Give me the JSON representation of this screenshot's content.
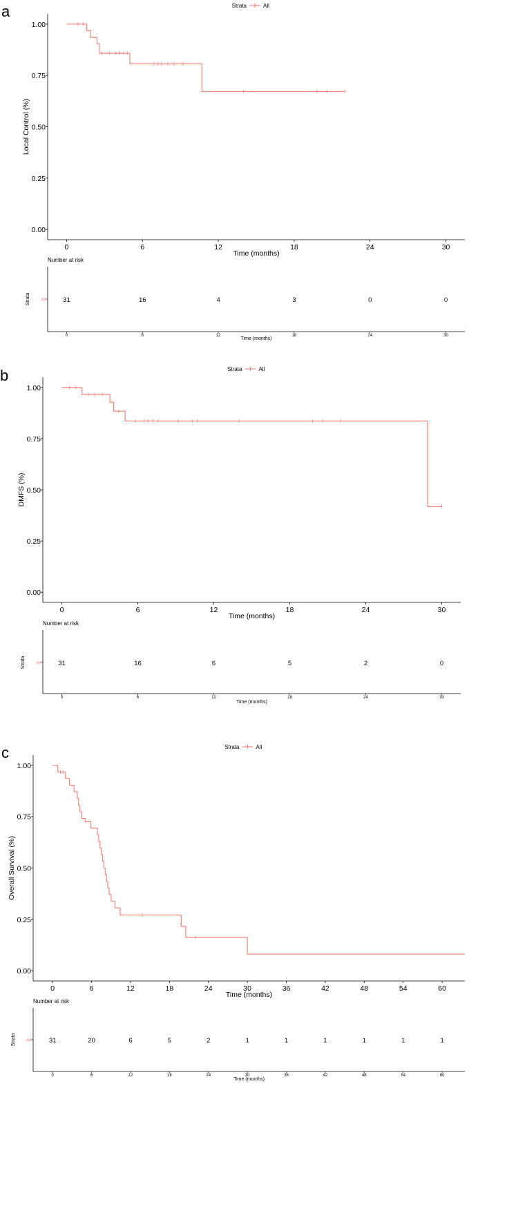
{
  "chart_data": [
    {
      "panel": "a",
      "type": "line",
      "subtype": "kaplan-meier",
      "legend": {
        "title": "Strata",
        "entries": [
          "All"
        ],
        "color": "#f8766d",
        "placement": "top-center"
      },
      "title": "",
      "xlabel": "Time (months)",
      "ylabel": "Local Control (%)",
      "xlim": [
        -1.5,
        31.5
      ],
      "ylim": [
        -0.05,
        1.05
      ],
      "xticks": [
        0,
        6,
        12,
        18,
        24,
        30
      ],
      "yticks": [
        0,
        0.25,
        0.5,
        0.75,
        1
      ],
      "ytick_labels": [
        "0.00",
        "0.25",
        "0.50",
        "0.75",
        "1.00"
      ],
      "grid": false,
      "series": [
        {
          "name": "All",
          "color": "#f8766d",
          "steps": [
            [
              0,
              1.0
            ],
            [
              1.6,
              0.968
            ],
            [
              1.9,
              0.935
            ],
            [
              2.4,
              0.903
            ],
            [
              2.6,
              0.858
            ],
            [
              5.0,
              0.806
            ],
            [
              10.7,
              0.672
            ]
          ],
          "end_x": 22.0,
          "censored": [
            0.9,
            1.3,
            2.8,
            3.4,
            3.9,
            4.2,
            4.5,
            4.8,
            6.9,
            7.2,
            7.5,
            8.0,
            8.5,
            9.2,
            14.0,
            19.8,
            20.6,
            22.0
          ]
        }
      ],
      "risk_table": {
        "title": "Number at risk",
        "strata_label": "Strata",
        "row_label": "All",
        "times": [
          0,
          6,
          12,
          18,
          24,
          30
        ],
        "values": [
          31,
          16,
          4,
          3,
          0,
          0
        ],
        "xlabel": "Time (months)"
      }
    },
    {
      "panel": "b",
      "type": "line",
      "subtype": "kaplan-meier",
      "legend": {
        "title": "Strata",
        "entries": [
          "All"
        ],
        "color": "#f8766d",
        "placement": "top-center"
      },
      "title": "",
      "xlabel": "Time (months)",
      "ylabel": "DMFS (%)",
      "xlim": [
        -1.5,
        31.5
      ],
      "ylim": [
        -0.05,
        1.05
      ],
      "xticks": [
        0,
        6,
        12,
        18,
        24,
        30
      ],
      "yticks": [
        0,
        0.25,
        0.5,
        0.75,
        1
      ],
      "ytick_labels": [
        "0.00",
        "0.25",
        "0.50",
        "0.75",
        "1.00"
      ],
      "grid": false,
      "series": [
        {
          "name": "All",
          "color": "#f8766d",
          "steps": [
            [
              0,
              1.0
            ],
            [
              1.6,
              0.966
            ],
            [
              3.8,
              0.928
            ],
            [
              4.1,
              0.884
            ],
            [
              5.0,
              0.836
            ],
            [
              28.9,
              0.418
            ]
          ],
          "end_x": 30.0,
          "censored": [
            0.6,
            1.1,
            2.1,
            2.6,
            3.2,
            4.5,
            5.8,
            6.5,
            6.8,
            7.2,
            7.6,
            9.2,
            10.3,
            10.7,
            14.0,
            19.8,
            20.6,
            22.0,
            30.0
          ]
        }
      ],
      "risk_table": {
        "title": "Number at risk",
        "strata_label": "Strata",
        "row_label": "All",
        "times": [
          0,
          6,
          12,
          18,
          24,
          30
        ],
        "values": [
          31,
          16,
          6,
          5,
          2,
          0
        ],
        "xlabel": "Time (months)"
      }
    },
    {
      "panel": "c",
      "type": "line",
      "subtype": "kaplan-meier",
      "legend": {
        "title": "Strata",
        "entries": [
          "All"
        ],
        "color": "#f8766d",
        "placement": "top-center"
      },
      "title": "",
      "xlabel": "Time (months)",
      "ylabel": "Overall Survival (%)",
      "xlim": [
        -3,
        63.5
      ],
      "ylim": [
        -0.05,
        1.05
      ],
      "xticks": [
        0,
        6,
        12,
        18,
        24,
        30,
        36,
        42,
        48,
        54,
        60
      ],
      "yticks": [
        0,
        0.25,
        0.5,
        0.75,
        1
      ],
      "ytick_labels": [
        "0.00",
        "0.25",
        "0.50",
        "0.75",
        "1.00"
      ],
      "grid": false,
      "series": [
        {
          "name": "All",
          "color": "#f8766d",
          "steps": [
            [
              0,
              1.0
            ],
            [
              0.8,
              0.968
            ],
            [
              2.0,
              0.935
            ],
            [
              2.6,
              0.903
            ],
            [
              3.3,
              0.871
            ],
            [
              3.8,
              0.839
            ],
            [
              4.0,
              0.806
            ],
            [
              4.2,
              0.774
            ],
            [
              4.5,
              0.742
            ],
            [
              5.0,
              0.726
            ],
            [
              5.9,
              0.694
            ],
            [
              6.9,
              0.662
            ],
            [
              7.1,
              0.629
            ],
            [
              7.3,
              0.597
            ],
            [
              7.5,
              0.565
            ],
            [
              7.7,
              0.532
            ],
            [
              7.9,
              0.5
            ],
            [
              8.1,
              0.468
            ],
            [
              8.3,
              0.435
            ],
            [
              8.5,
              0.403
            ],
            [
              8.7,
              0.371
            ],
            [
              9.0,
              0.339
            ],
            [
              9.6,
              0.306
            ],
            [
              10.4,
              0.271
            ],
            [
              19.8,
              0.216
            ],
            [
              20.5,
              0.162
            ],
            [
              30.0,
              0.081
            ]
          ],
          "end_x": 63.5,
          "censored": [
            1.2,
            1.6,
            13.8,
            22.0
          ]
        }
      ],
      "risk_table": {
        "title": "Number at risk",
        "strata_label": "Strata",
        "row_label": "All",
        "times": [
          0,
          6,
          12,
          18,
          24,
          30,
          36,
          42,
          48,
          54,
          60
        ],
        "values": [
          31,
          20,
          6,
          5,
          2,
          1,
          1,
          1,
          1,
          1,
          1
        ],
        "xlabel": "Time (months)"
      }
    }
  ],
  "panel_labels": [
    "a",
    "b",
    "c"
  ]
}
